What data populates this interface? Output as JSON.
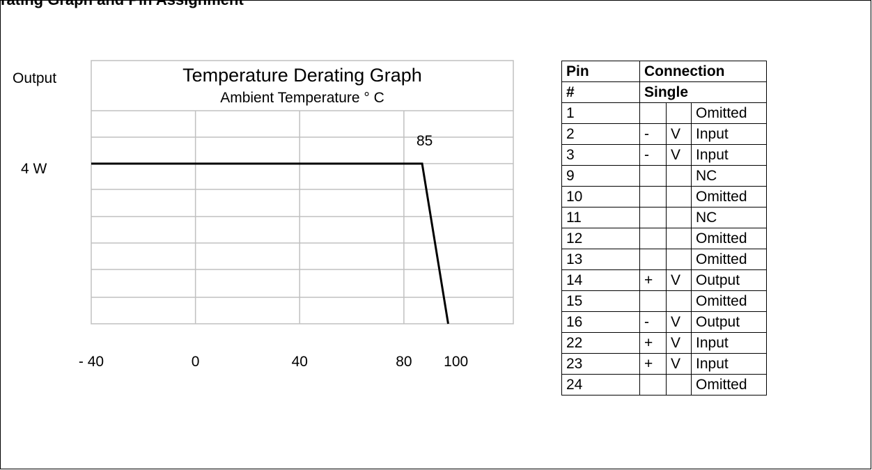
{
  "header": {
    "cut_title": "rating Graph and Pin Assignment"
  },
  "chart_data": {
    "type": "line",
    "title": "Temperature Derating Graph",
    "subtitle": "Ambient Temperature ° C",
    "ylabel": "Output",
    "y_tick_label": "4 W",
    "x_tick_labels": [
      "- 40",
      "0",
      "40",
      "80",
      "100"
    ],
    "x_ticks": [
      -40,
      0,
      40,
      80,
      100
    ],
    "annotation": "85",
    "xlim": [
      -40,
      122
    ],
    "ylim": [
      0,
      4
    ],
    "grid": true,
    "series": [
      {
        "x": [
          -40,
          87,
          97
        ],
        "y": [
          4,
          4,
          0
        ]
      }
    ]
  },
  "pin_table": {
    "header1": {
      "pin": "Pin",
      "connection": "Connection"
    },
    "header2": {
      "pin": "#",
      "connection": "Single"
    },
    "rows": [
      {
        "pin": "1",
        "sign": "",
        "unit": "",
        "function": "Omitted"
      },
      {
        "pin": "2",
        "sign": "-",
        "unit": "V",
        "function": "Input"
      },
      {
        "pin": "3",
        "sign": "-",
        "unit": "V",
        "function": "Input"
      },
      {
        "pin": "9",
        "sign": "",
        "unit": "",
        "function": "NC"
      },
      {
        "pin": "10",
        "sign": "",
        "unit": "",
        "function": "Omitted"
      },
      {
        "pin": "11",
        "sign": "",
        "unit": "",
        "function": "NC"
      },
      {
        "pin": "12",
        "sign": "",
        "unit": "",
        "function": "Omitted"
      },
      {
        "pin": "13",
        "sign": "",
        "unit": "",
        "function": "Omitted"
      },
      {
        "pin": "14",
        "sign": "+",
        "unit": "V",
        "function": "Output"
      },
      {
        "pin": "15",
        "sign": "",
        "unit": "",
        "function": "Omitted"
      },
      {
        "pin": "16",
        "sign": "-",
        "unit": "V",
        "function": "Output"
      },
      {
        "pin": "22",
        "sign": "+",
        "unit": "V",
        "function": "Input"
      },
      {
        "pin": "23",
        "sign": "+",
        "unit": "V",
        "function": "Input"
      },
      {
        "pin": "24",
        "sign": "",
        "unit": "",
        "function": "Omitted"
      }
    ]
  }
}
